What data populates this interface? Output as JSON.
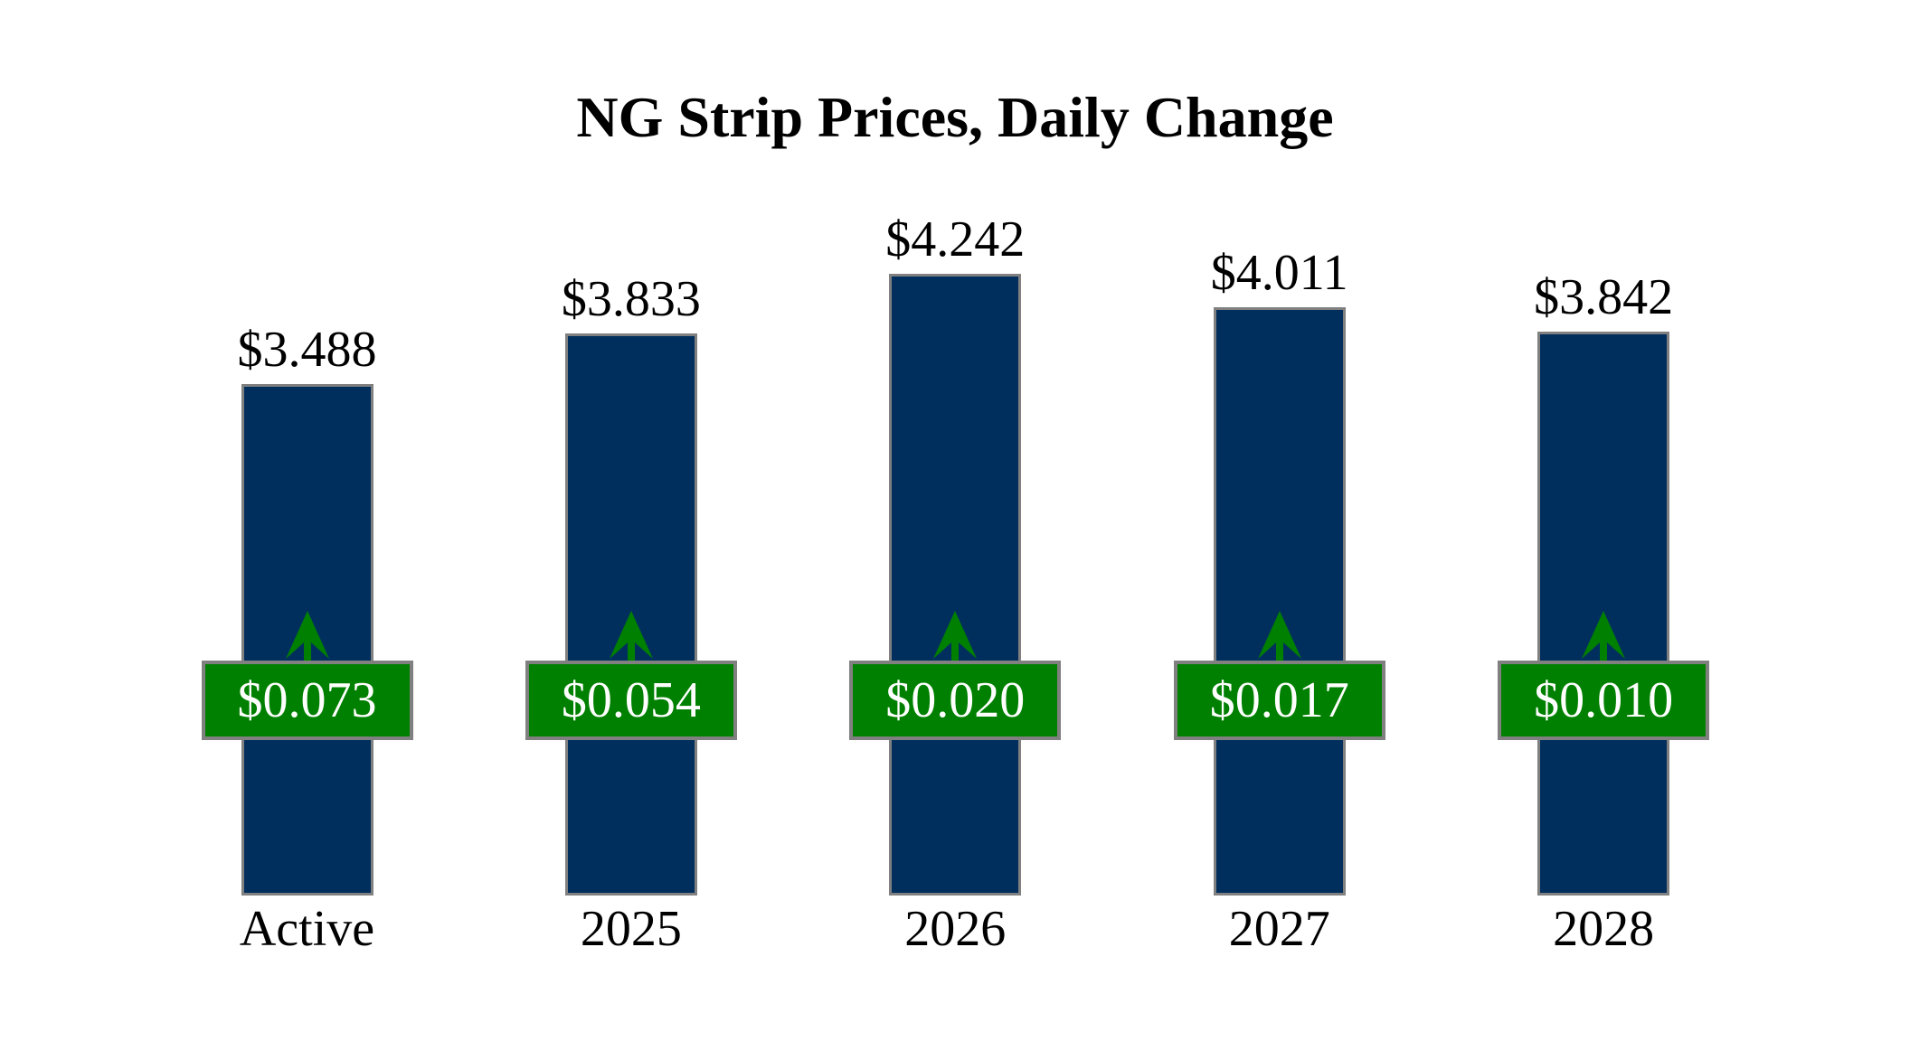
{
  "title": "NG Strip Prices, Daily Change",
  "chart_data": {
    "type": "bar",
    "title": "NG Strip Prices, Daily Change",
    "categories": [
      "Active",
      "2025",
      "2026",
      "2027",
      "2028"
    ],
    "values": [
      3.488,
      3.833,
      4.242,
      4.011,
      3.842
    ],
    "value_labels": [
      "$3.488",
      "$3.833",
      "$4.242",
      "$4.011",
      "$3.842"
    ],
    "daily_changes": [
      0.073,
      0.054,
      0.02,
      0.017,
      0.01
    ],
    "change_labels": [
      "$0.073",
      "$0.054",
      "$0.020",
      "$0.017",
      "$0.010"
    ],
    "change_direction": "up",
    "xlabel": "",
    "ylabel": "",
    "ylim": [
      0,
      4.4
    ],
    "grid": false,
    "legend": false,
    "axes_visible": false,
    "colors": {
      "background": "#FFFFFF",
      "bar_fill": "#002F5E",
      "bar_border": "#808080",
      "badge_fill": "#008000",
      "badge_border": "#808080",
      "badge_text": "#FFFFFF",
      "arrow": "#008000",
      "label_text": "#000000"
    }
  }
}
